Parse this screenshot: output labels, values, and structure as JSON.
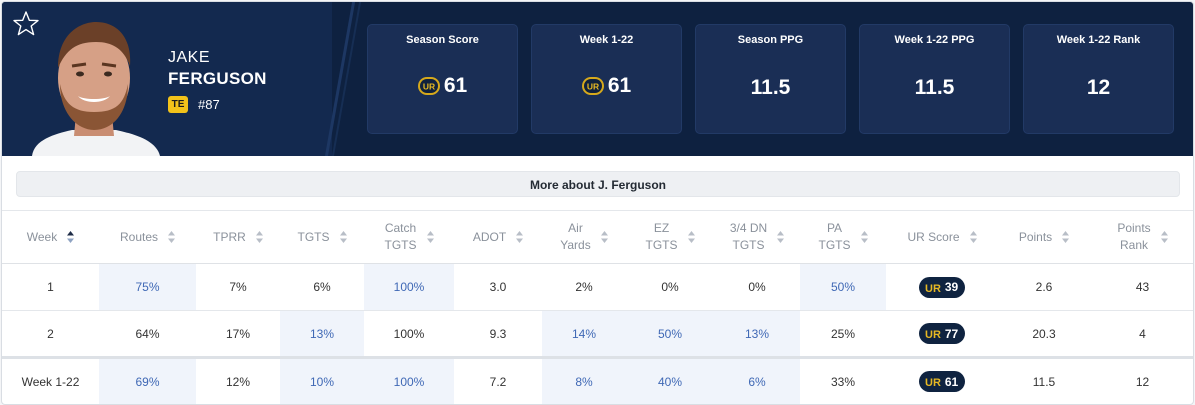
{
  "player": {
    "first_name": "JAKE",
    "last_name": "FERGUSON",
    "position": "TE",
    "jersey": "#87"
  },
  "icons": {
    "favorite": "star-outline-icon",
    "brand": "ur-logo-icon",
    "sort": "sort-arrows-icon"
  },
  "colors": {
    "header_bg": "#0e2140",
    "stat_box": "#1a2e55",
    "badge": "#f2c21a",
    "highlight_text": "#3f68b5",
    "highlight_bg": "#f0f4fb"
  },
  "stats": [
    {
      "label": "Season Score",
      "value": "61",
      "logo": true
    },
    {
      "label": "Week 1-22",
      "value": "61",
      "logo": true
    },
    {
      "label": "Season PPG",
      "value": "11.5",
      "logo": false
    },
    {
      "label": "Week 1-22 PPG",
      "value": "11.5",
      "logo": false
    },
    {
      "label": "Week 1-22 Rank",
      "value": "12",
      "logo": false
    }
  ],
  "more_button": "More about J. Ferguson",
  "table": {
    "headers": [
      [
        "Week"
      ],
      [
        "Routes"
      ],
      [
        "TPRR"
      ],
      [
        "TGTS"
      ],
      [
        "Catch",
        "TGTS"
      ],
      [
        "ADOT"
      ],
      [
        "Air",
        "Yards"
      ],
      [
        "EZ",
        "TGTS"
      ],
      [
        "3/4 DN",
        "TGTS"
      ],
      [
        "PA",
        "TGTS"
      ],
      [
        "UR Score"
      ],
      [
        "Points"
      ],
      [
        "Points",
        "Rank"
      ]
    ],
    "rows": [
      {
        "week": "1",
        "routes": "75%",
        "tprr": "7%",
        "tgts": "6%",
        "catch_tgts": "100%",
        "adot": "3.0",
        "air_yards": "2%",
        "ez_tgts": "0%",
        "dn_tgts": "0%",
        "pa_tgts": "50%",
        "ur_score": "39",
        "points": "2.6",
        "points_rank": "43"
      },
      {
        "week": "2",
        "routes": "64%",
        "tprr": "17%",
        "tgts": "13%",
        "catch_tgts": "100%",
        "adot": "9.3",
        "air_yards": "14%",
        "ez_tgts": "50%",
        "dn_tgts": "13%",
        "pa_tgts": "25%",
        "ur_score": "77",
        "points": "20.3",
        "points_rank": "4"
      }
    ],
    "total": {
      "week": "Week 1-22",
      "routes": "69%",
      "tprr": "12%",
      "tgts": "10%",
      "catch_tgts": "100%",
      "adot": "7.2",
      "air_yards": "8%",
      "ez_tgts": "40%",
      "dn_tgts": "6%",
      "pa_tgts": "33%",
      "ur_score": "61",
      "points": "11.5",
      "points_rank": "12"
    }
  }
}
